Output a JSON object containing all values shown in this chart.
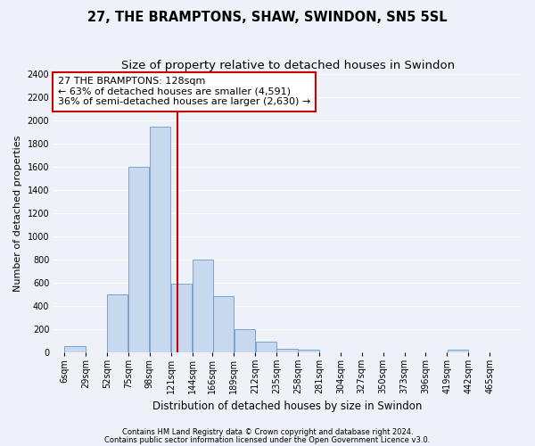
{
  "title": "27, THE BRAMPTONS, SHAW, SWINDON, SN5 5SL",
  "subtitle": "Size of property relative to detached houses in Swindon",
  "xlabel": "Distribution of detached houses by size in Swindon",
  "ylabel": "Number of detached properties",
  "footnote1": "Contains HM Land Registry data © Crown copyright and database right 2024.",
  "footnote2": "Contains public sector information licensed under the Open Government Licence v3.0.",
  "annotation_line1": "27 THE BRAMPTONS: 128sqm",
  "annotation_line2": "← 63% of detached houses are smaller (4,591)",
  "annotation_line3": "36% of semi-detached houses are larger (2,630) →",
  "bar_color": "#c8d8ee",
  "bar_edge_color": "#6699cc",
  "ref_line_color": "#cc0000",
  "ref_line_x": 128,
  "categories": [
    "6sqm",
    "29sqm",
    "52sqm",
    "75sqm",
    "98sqm",
    "121sqm",
    "144sqm",
    "166sqm",
    "189sqm",
    "212sqm",
    "235sqm",
    "258sqm",
    "281sqm",
    "304sqm",
    "327sqm",
    "350sqm",
    "373sqm",
    "396sqm",
    "419sqm",
    "442sqm",
    "465sqm"
  ],
  "bin_edges": [
    6,
    29,
    52,
    75,
    98,
    121,
    144,
    166,
    189,
    212,
    235,
    258,
    281,
    304,
    327,
    350,
    373,
    396,
    419,
    442,
    465
  ],
  "bin_width": 23,
  "values": [
    50,
    0,
    500,
    1600,
    1950,
    590,
    800,
    480,
    200,
    90,
    30,
    20,
    0,
    0,
    0,
    0,
    0,
    0,
    20,
    0,
    0
  ],
  "ylim": [
    0,
    2400
  ],
  "yticks": [
    0,
    200,
    400,
    600,
    800,
    1000,
    1200,
    1400,
    1600,
    1800,
    2000,
    2200,
    2400
  ],
  "background_color": "#eef2f8",
  "grid_color": "#ffffff",
  "title_fontsize": 10.5,
  "subtitle_fontsize": 9.5,
  "xlabel_fontsize": 8.5,
  "ylabel_fontsize": 8,
  "tick_fontsize": 7,
  "annotation_fontsize": 8,
  "footnote_fontsize": 6
}
